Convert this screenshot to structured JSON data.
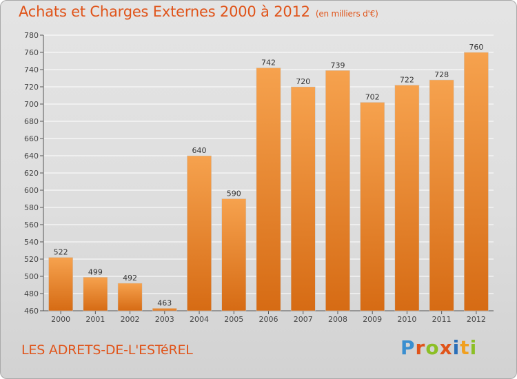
{
  "header": {
    "title": "Achats et Charges Externes 2000 à 2012",
    "subtitle": "(en milliers d'€)"
  },
  "footer": {
    "town": "LES ADRETS-DE-L'ESTéREL",
    "logo_text": "Proxiti",
    "logo_colors": [
      "#3a8fd0",
      "#e0541a",
      "#8cbf26",
      "#e0541a",
      "#2a6fb8",
      "#f0a020",
      "#8cbf26"
    ]
  },
  "colors": {
    "bar_top": "#f6a24e",
    "bar_bottom": "#d66b14",
    "accent": "#e0541a",
    "grid": "#ffffff"
  },
  "chart_data": {
    "type": "bar",
    "title": "Achats et Charges Externes 2000 à 2012",
    "subtitle": "(en milliers d'€)",
    "categories": [
      "2000",
      "2001",
      "2002",
      "2003",
      "2004",
      "2005",
      "2006",
      "2007",
      "2008",
      "2009",
      "2010",
      "2011",
      "2012"
    ],
    "values": [
      522,
      499,
      492,
      463,
      640,
      590,
      742,
      720,
      739,
      702,
      722,
      728,
      760
    ],
    "ylim": [
      460,
      780
    ],
    "yticks": [
      460,
      480,
      500,
      520,
      540,
      560,
      580,
      600,
      620,
      640,
      660,
      680,
      700,
      720,
      740,
      760,
      780
    ],
    "grid": true,
    "xlabel": "",
    "ylabel": ""
  }
}
